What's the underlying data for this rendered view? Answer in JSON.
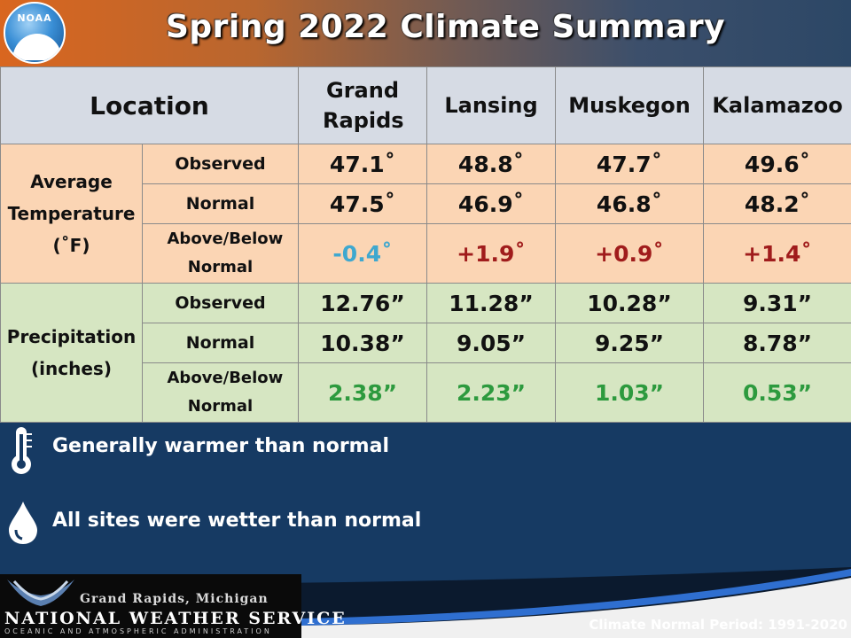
{
  "header": {
    "logo_text": "NOAA",
    "title": "Spring 2022 Climate Summary"
  },
  "table": {
    "location_label": "Location",
    "stations": [
      "Grand Rapids",
      "Lansing",
      "Muskegon",
      "Kalamazoo"
    ],
    "temperature": {
      "group_label": "Average Temperature (˚F)",
      "rows": [
        {
          "label": "Observed",
          "values": [
            "47.1˚",
            "48.8˚",
            "47.7˚",
            "49.6˚"
          ]
        },
        {
          "label": "Normal",
          "values": [
            "47.5˚",
            "46.9˚",
            "46.8˚",
            "48.2˚"
          ]
        },
        {
          "label": "Above/Below Normal",
          "values": [
            "-0.4˚",
            "+1.9˚",
            "+0.9˚",
            "+1.4˚"
          ]
        }
      ]
    },
    "precipitation": {
      "group_label": "Precipitation (inches)",
      "rows": [
        {
          "label": "Observed",
          "values": [
            "12.76”",
            "11.28”",
            "10.28”",
            "9.31”"
          ]
        },
        {
          "label": "Normal",
          "values": [
            "10.38”",
            "9.05”",
            "9.25”",
            "8.78”"
          ]
        },
        {
          "label": "Above/Below Normal",
          "values": [
            "2.38”",
            "2.23”",
            "1.03”",
            "0.53”"
          ]
        }
      ]
    }
  },
  "bullets": [
    {
      "icon": "thermometer-icon",
      "text": "Generally warmer than normal"
    },
    {
      "icon": "water-drop-icon",
      "text": "All sites were wetter than normal"
    }
  ],
  "footer": {
    "office": "Grand Rapids, Michigan",
    "agency": "NATIONAL WEATHER SERVICE",
    "parent": "OCEANIC AND ATMOSPHERIC ADMINISTRATION",
    "normal_period": "Climate Normal Period: 1991-2020"
  },
  "colors": {
    "temp_bg": "#fbd5b4",
    "precip_bg": "#d6e6c2",
    "below_normal": "#3fa8cf",
    "above_normal": "#a01c1c",
    "wetter": "#2d9a3e",
    "background": "#163a63"
  }
}
